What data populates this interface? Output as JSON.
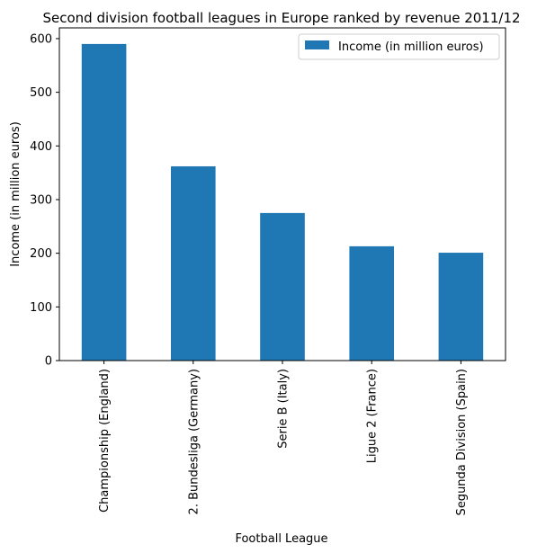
{
  "chart_data": {
    "type": "bar",
    "title": "Second division football leagues in Europe ranked by revenue 2011/12",
    "xlabel": "Football League",
    "ylabel": "Income (in million euros)",
    "categories": [
      "Championship (England)",
      "2. Bundesliga (Germany)",
      "Serie B (Italy)",
      "Ligue 2 (France)",
      "Segunda Division (Spain)"
    ],
    "series": [
      {
        "name": "Income (in million euros)",
        "values": [
          590,
          362,
          275,
          213,
          201
        ],
        "color": "#1f77b4"
      }
    ],
    "yticks": [
      0,
      100,
      200,
      300,
      400,
      500,
      600
    ],
    "ylim": [
      0,
      620
    ],
    "legend_position": "top-right",
    "grid": false
  }
}
